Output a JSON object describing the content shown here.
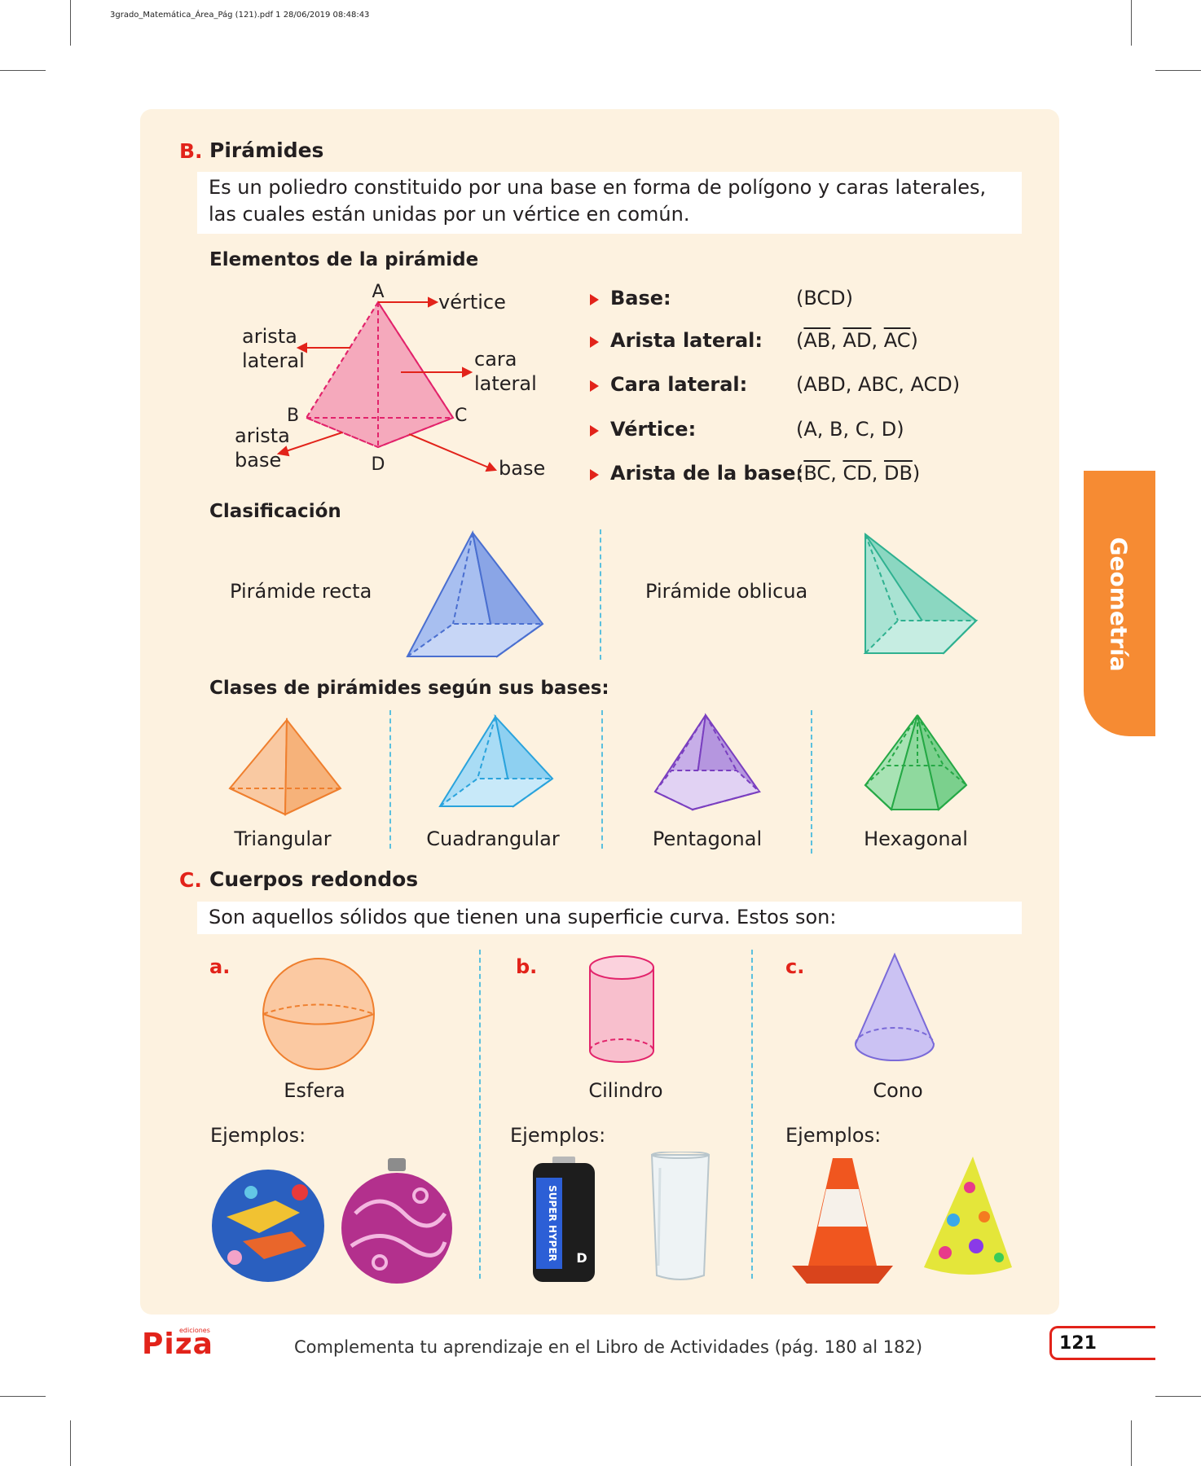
{
  "print_header": "3grado_Matemática_Área_Pág (121).pdf   1   28/06/2019   08:48:43",
  "section_b": {
    "letter": "B.",
    "title": "Pirámides",
    "definition": "Es un poliedro constituido por una base en forma de polígono y caras laterales, las cuales están unidas por un vértice en común.",
    "elements_heading": "Elementos de la pirámide",
    "diagram_labels": {
      "A": "A",
      "B": "B",
      "C": "C",
      "D": "D",
      "vertex": "vértice",
      "lateral_edge_1": "arista",
      "lateral_edge_2": "lateral",
      "lateral_face_1": "cara",
      "lateral_face_2": "lateral",
      "base_edge_1": "arista",
      "base_edge_2": "base",
      "base": "base"
    },
    "properties": [
      {
        "key": "Base:",
        "value": "(BCD)"
      },
      {
        "key": "Arista lateral:",
        "value_prefix": "(",
        "segments": [
          "AB",
          "AD",
          "AC"
        ],
        "value_suffix": ")"
      },
      {
        "key": "Cara lateral:",
        "value": "(ABD, ABC, ACD)"
      },
      {
        "key": "Vértice:",
        "value": "(A, B, C, D)"
      },
      {
        "key": "Arista de la base:",
        "value_prefix": "(",
        "segments": [
          "BC",
          "CD",
          "DB"
        ],
        "value_suffix": ")"
      }
    ],
    "classification_heading": "Clasificación",
    "classification": [
      {
        "label": "Pirámide recta",
        "color": "#6f8fe0"
      },
      {
        "label": "Pirámide oblicua",
        "color": "#4cc5a6"
      }
    ],
    "bases_heading": "Clases de pirámides según sus bases:",
    "bases": [
      {
        "label": "Triangular",
        "color": "#f29a56"
      },
      {
        "label": "Cuadrangular",
        "color": "#4cb8e8"
      },
      {
        "label": "Pentagonal",
        "color": "#8a5cc8"
      },
      {
        "label": "Hexagonal",
        "color": "#3cbf5a"
      }
    ]
  },
  "section_c": {
    "letter": "C.",
    "title": "Cuerpos redondos",
    "definition": "Son aquellos sólidos que tienen una superficie curva. Estos son:",
    "bodies": [
      {
        "letter": "a.",
        "name": "Esfera",
        "examples_label": "Ejemplos:",
        "color": "#f4a063"
      },
      {
        "letter": "b.",
        "name": "Cilindro",
        "examples_label": "Ejemplos:",
        "color": "#f07a9a"
      },
      {
        "letter": "c.",
        "name": "Cono",
        "examples_label": "Ejemplos:",
        "color": "#8f7fe0"
      }
    ],
    "battery_text_1": "SUPER HYPER",
    "battery_text_2": "D"
  },
  "side_tab": "Geometría",
  "footer": {
    "logo": "Piza",
    "logo_small": "ediciones",
    "note": "Complementa tu aprendizaje en el Libro de Actividades (pág. 180 al 182)",
    "page_number": "121"
  },
  "colors": {
    "accent_red": "#e2231a",
    "panel": "#fdf2e0",
    "tab_orange": "#f68b33"
  }
}
